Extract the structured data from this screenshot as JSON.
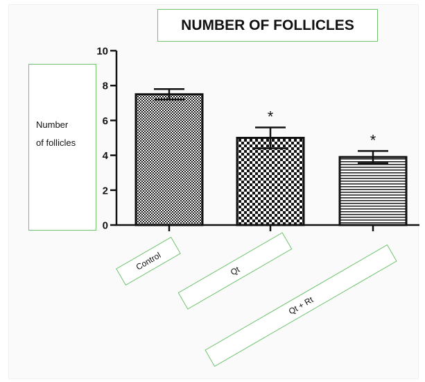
{
  "chart_data": {
    "type": "bar",
    "title": "NUMBER OF FOLLICLES",
    "ylabel": "Number\nof follicles",
    "ylabel_lines": [
      "Number",
      "of follicles"
    ],
    "xlabel": "",
    "categories": [
      "Control",
      "Qt",
      "Qt + Rt"
    ],
    "values": [
      7.5,
      5.0,
      3.9
    ],
    "error": [
      0.3,
      0.6,
      0.35
    ],
    "significance": [
      "",
      "*",
      "*"
    ],
    "ylim": [
      0,
      10
    ],
    "yticks": [
      0,
      2,
      4,
      6,
      8,
      10
    ],
    "ytick_labels": [
      "0",
      "2",
      "4",
      "6",
      "8",
      "10"
    ],
    "patterns": [
      "fine-checker",
      "coarse-checker",
      "horizontal-stripes"
    ],
    "grid": false,
    "legend": "none"
  }
}
